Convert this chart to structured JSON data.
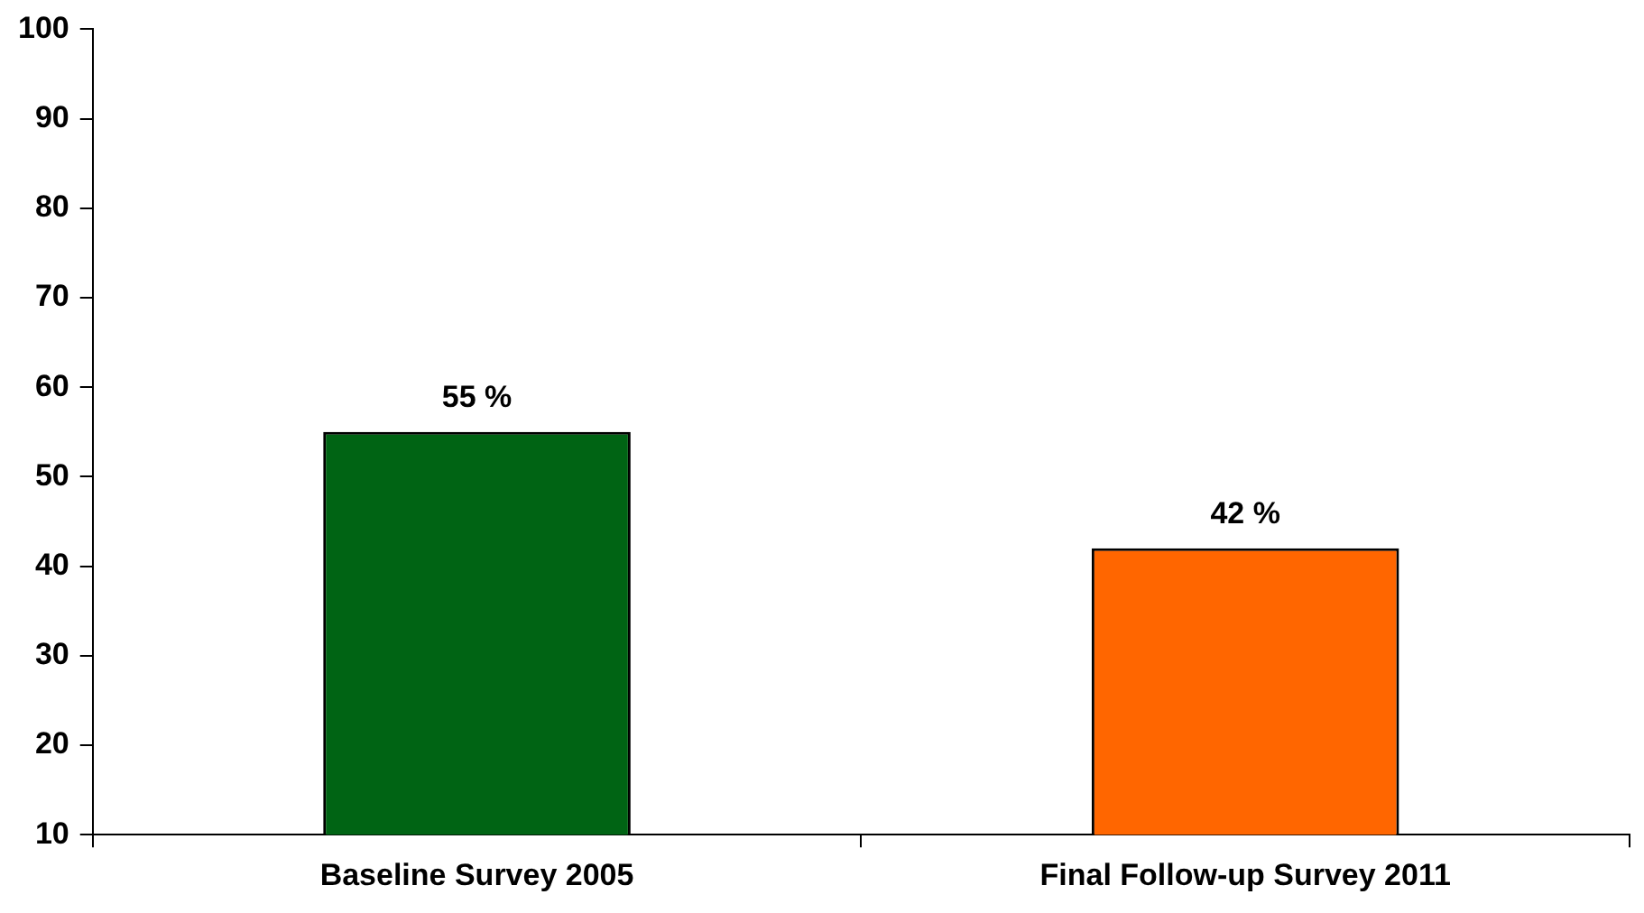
{
  "chart_data": {
    "type": "bar",
    "categories": [
      "Baseline Survey 2005",
      "Final Follow-up Survey 2011"
    ],
    "values": [
      55,
      42
    ],
    "colors": [
      "#006414",
      "#ff6600"
    ],
    "value_labels": [
      "55 %",
      "42 %"
    ],
    "ylim": [
      10,
      100
    ],
    "yticks": [
      10,
      20,
      30,
      40,
      50,
      60,
      70,
      80,
      90,
      100
    ],
    "grid": false,
    "legend": false
  }
}
